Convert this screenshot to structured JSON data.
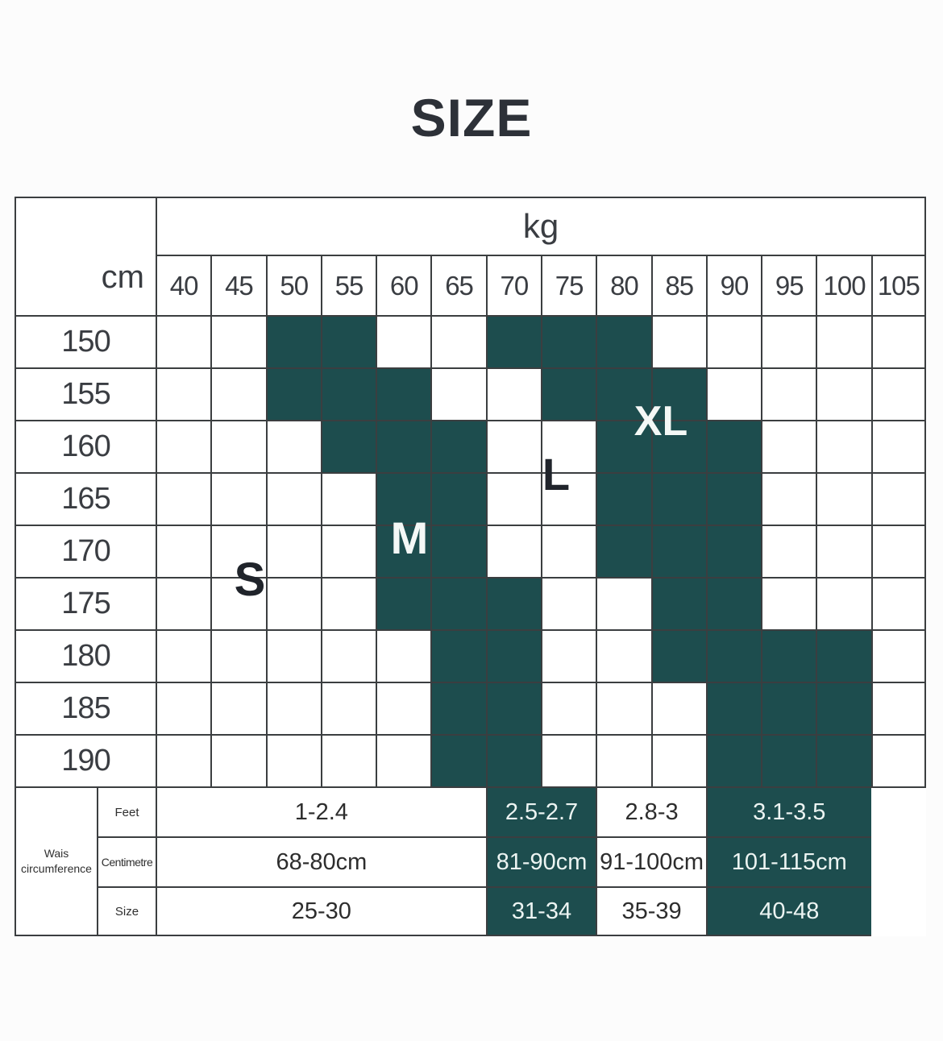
{
  "title": "SIZE",
  "colors": {
    "shaded": "#1d4d4e",
    "grid_line": "#3b3e40",
    "title_text": "#2d3138",
    "dark_text": "#3a3d42",
    "light_text": "#ecf4f2"
  },
  "chart_data": {
    "type": "table",
    "title": "SIZE",
    "column_unit": "kg",
    "row_unit": "cm",
    "weights_kg": [
      40,
      45,
      50,
      55,
      60,
      65,
      70,
      75,
      80,
      85,
      90,
      95,
      100,
      105
    ],
    "heights_cm": [
      150,
      155,
      160,
      165,
      170,
      175,
      180,
      185,
      190
    ],
    "shaded_weights_by_height": {
      "150": [
        50,
        55,
        70,
        75,
        80
      ],
      "155": [
        50,
        55,
        60,
        75,
        80,
        85
      ],
      "160": [
        55,
        60,
        65,
        80,
        85,
        90
      ],
      "165": [
        60,
        65,
        80,
        85,
        90
      ],
      "170": [
        60,
        65,
        80,
        85,
        90
      ],
      "175": [
        60,
        65,
        70,
        85,
        90
      ],
      "180": [
        65,
        70,
        85,
        90,
        95,
        100
      ],
      "185": [
        65,
        70,
        90,
        95,
        100
      ],
      "190": [
        65,
        70,
        90,
        95,
        100
      ]
    },
    "size_labels": [
      {
        "label": "S",
        "on_shaded": false
      },
      {
        "label": "M",
        "on_shaded": true
      },
      {
        "label": "L",
        "on_shaded": false
      },
      {
        "label": "XL",
        "on_shaded": true
      }
    ],
    "waist_section": {
      "header": "Wais circumference",
      "row_labels": [
        "Feet",
        "Centimetre",
        "Size"
      ],
      "groups": [
        {
          "weight_span": [
            40,
            65
          ],
          "span_cols": 6,
          "shaded": false,
          "values": [
            "1-2.4",
            "68-80cm",
            "25-30"
          ]
        },
        {
          "weight_span": [
            70,
            75
          ],
          "span_cols": 2,
          "shaded": true,
          "values": [
            "2.5-2.7",
            "81-90cm",
            "31-34"
          ]
        },
        {
          "weight_span": [
            80,
            85
          ],
          "span_cols": 2,
          "shaded": false,
          "values": [
            "2.8-3",
            "91-100cm",
            "35-39"
          ]
        },
        {
          "weight_span": [
            90,
            100
          ],
          "span_cols": 3,
          "shaded": true,
          "values": [
            "3.1-3.5",
            "101-115cm",
            "40-48"
          ]
        },
        {
          "weight_span": [
            105,
            105
          ],
          "span_cols": 1,
          "shaded": false,
          "borderless": true,
          "values": [
            "",
            "",
            ""
          ]
        }
      ]
    }
  }
}
